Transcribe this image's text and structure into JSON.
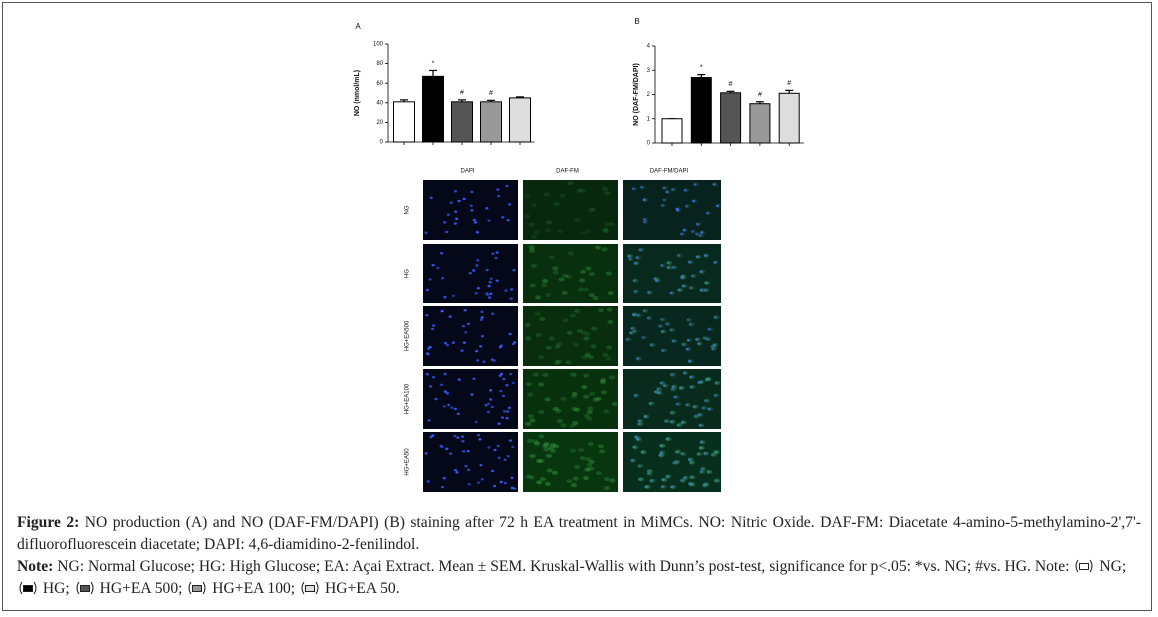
{
  "chart_data": [
    {
      "type": "bar",
      "panel": "A",
      "ylabel": "NO (nmol/mL)",
      "categories": [
        null,
        null,
        null,
        null,
        null
      ],
      "values": [
        41,
        67,
        41,
        41,
        45
      ],
      "errors": [
        2,
        6,
        2,
        1.5,
        1
      ],
      "colors": [
        "#ffffff",
        "#000000",
        "#555555",
        "#999999",
        "#dddddd"
      ],
      "markers": [
        null,
        "*",
        "#",
        "#",
        null
      ],
      "ylim": [
        0,
        100
      ],
      "yticks": [
        0,
        20,
        40,
        60,
        80,
        100
      ]
    },
    {
      "type": "bar",
      "panel": "B",
      "ylabel": "NO (DAF-FM/DAPI)",
      "categories": [
        null,
        null,
        null,
        null,
        null
      ],
      "values": [
        1,
        2.7,
        2.07,
        1.62,
        2.05
      ],
      "errors": [
        0,
        0.12,
        0.06,
        0.08,
        0.12
      ],
      "colors": [
        "#ffffff",
        "#000000",
        "#555555",
        "#999999",
        "#dddddd"
      ],
      "markers": [
        null,
        "*",
        "#",
        "#",
        "#"
      ],
      "ylim": [
        0,
        4
      ],
      "yticks": [
        0,
        1,
        2,
        3,
        4
      ]
    }
  ],
  "micrographs": {
    "columns": [
      "DAPI",
      "DAF-FM",
      "DAF-FM/DAPI"
    ],
    "rows": [
      "NG",
      "HG",
      "HG+EA500",
      "HG+EA100",
      "HG+EA50"
    ]
  },
  "caption": {
    "label": "Figure 2:",
    "text": "NO production (A) and NO (DAF-FM/DAPI) (B) staining after 72 h EA treatment in MiMCs. NO: Nitric Oxide. DAF-FM: Diacetate 4-amino-5-methylamino-2',7'-difluorofluorescein diacetate; DAPI: 4,6-diamidino-2-fenilindol.",
    "note_label": "Note:",
    "note_text": "NG: Normal Glucose; HG: High Glucose; EA: Açai Extract. Mean ± SEM. Kruskal-Wallis with Dunn’s post-test, significance for p<.05: *vs. NG; #vs. HG. Note:",
    "legend": [
      "NG;",
      "HG;",
      "HG+EA 500;",
      "HG+EA 100;",
      "HG+EA 50."
    ]
  }
}
